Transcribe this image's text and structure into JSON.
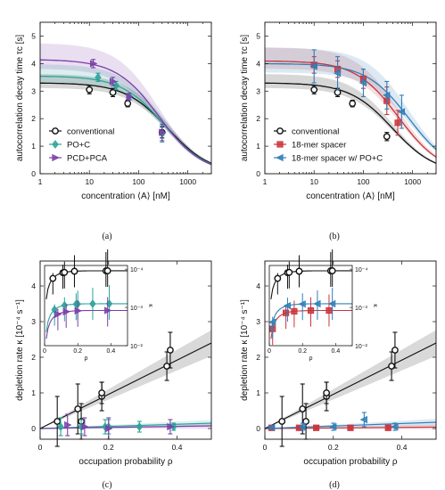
{
  "colors": {
    "conventional": "#111111",
    "poc": "#2ba39a",
    "pcd": "#7b3fa8",
    "spacer": "#c9343c",
    "spacer_poc": "#2f7fb8"
  },
  "chart_data": [
    {
      "panel": "a",
      "type": "scatter",
      "caption": "(a)",
      "xlabel": "concentration ⟨A⟩ [nM]",
      "ylabel": "autocorrelation decay time τc [s]",
      "xscale": "log",
      "xlim": [
        1,
        3000
      ],
      "ylim": [
        0,
        5.5
      ],
      "xticks": [
        "1",
        "10",
        "100",
        "1000"
      ],
      "yticks": [
        "0",
        "1",
        "2",
        "3",
        "4",
        "5"
      ],
      "legend_position": "bottom-left",
      "series": [
        {
          "name": "conventional",
          "color": "#111111",
          "marker": "circle",
          "x": [
            10,
            30,
            60,
            300
          ],
          "y": [
            3.05,
            2.95,
            2.55,
            1.5
          ],
          "err": [
            0.15,
            0.15,
            0.12,
            0.2
          ],
          "fit": {
            "y0": 3.3,
            "k": 390
          }
        },
        {
          "name": "PO+C",
          "color": "#2ba39a",
          "marker": "diamond",
          "x": [
            15,
            35,
            65,
            300
          ],
          "y": [
            3.5,
            3.2,
            2.8,
            1.45
          ],
          "err": [
            0.15,
            0.15,
            0.12,
            0.3
          ],
          "fit": {
            "y0": 3.55,
            "k": 330
          }
        },
        {
          "name": "PCD+PCA",
          "color": "#7b3fa8",
          "marker": "triangle-right",
          "x": [
            12,
            30,
            65,
            300
          ],
          "y": [
            4.0,
            3.35,
            2.8,
            1.5
          ],
          "err": [
            0.15,
            0.15,
            0.12,
            0.3
          ],
          "fit": {
            "y0": 4.15,
            "k": 260
          }
        }
      ]
    },
    {
      "panel": "b",
      "type": "scatter",
      "caption": "(b)",
      "xlabel": "concentration ⟨A⟩ [nM]",
      "ylabel": "autocorrelation decay time τc [s]",
      "xscale": "log",
      "xlim": [
        1,
        3000
      ],
      "ylim": [
        0,
        5.5
      ],
      "xticks": [
        "1",
        "10",
        "100",
        "1000"
      ],
      "yticks": [
        "0",
        "1",
        "2",
        "3",
        "4",
        "5"
      ],
      "legend_position": "bottom-left",
      "series": [
        {
          "name": "conventional",
          "color": "#111111",
          "marker": "circle",
          "x": [
            10,
            30,
            60,
            300
          ],
          "y": [
            3.05,
            2.95,
            2.55,
            1.35
          ],
          "err": [
            0.15,
            0.15,
            0.12,
            0.15
          ],
          "fit": {
            "y0": 3.3,
            "k": 390
          }
        },
        {
          "name": "18-mer spacer",
          "color": "#c9343c",
          "marker": "square",
          "x": [
            10,
            30,
            100,
            300,
            500
          ],
          "y": [
            3.95,
            3.8,
            3.45,
            2.65,
            1.85
          ],
          "err": [
            0.3,
            0.3,
            0.35,
            0.5,
            0.45
          ],
          "fit": {
            "y0": 4.1,
            "k": 520
          }
        },
        {
          "name": "18-mer spacer w/ PO+C",
          "color": "#2f7fb8",
          "marker": "triangle-left",
          "x": [
            10,
            30,
            100,
            300,
            600
          ],
          "y": [
            3.9,
            3.65,
            3.3,
            2.85,
            2.25
          ],
          "err": [
            0.6,
            0.6,
            0.5,
            0.5,
            0.6
          ],
          "fit": {
            "y0": 4.0,
            "k": 850
          }
        }
      ]
    },
    {
      "panel": "c",
      "type": "scatter",
      "caption": "(c)",
      "xlabel": "occupation probability ρ",
      "ylabel": "depletion rate κ [10⁻⁴ s⁻¹]",
      "xlim": [
        0,
        0.5
      ],
      "ylim": [
        -0.3,
        4.7
      ],
      "xticks": [
        "0",
        "0.2",
        "0.4"
      ],
      "yticks": [
        "0",
        "1",
        "2",
        "3",
        "4"
      ],
      "series": [
        {
          "name": "conventional",
          "color": "#111111",
          "marker": "circle",
          "x": [
            0.05,
            0.11,
            0.12,
            0.18,
            0.18,
            0.37,
            0.38
          ],
          "y": [
            0.2,
            0.55,
            0.2,
            0.9,
            1.0,
            1.75,
            2.2
          ],
          "err": [
            0.7,
            0.7,
            0.5,
            0.4,
            0.3,
            0.4,
            0.5
          ],
          "fit_slope": 4.8
        },
        {
          "name": "PO+C",
          "color": "#2ba39a",
          "marker": "diamond",
          "x": [
            0.06,
            0.12,
            0.19,
            0.2,
            0.29,
            0.39
          ],
          "y": [
            0.05,
            0.05,
            0.05,
            0.05,
            0.05,
            0.05
          ],
          "err": [
            0.25,
            0.2,
            0.2,
            0.2,
            0.15,
            0.1
          ],
          "fit_slope": 0.3
        },
        {
          "name": "PCD+PCA",
          "color": "#7b3fa8",
          "marker": "triangle-right",
          "x": [
            0.08,
            0.13,
            0.2,
            0.38
          ],
          "y": [
            0.1,
            0.05,
            0.0,
            0.05
          ],
          "err": [
            0.3,
            0.25,
            0.3,
            0.2
          ],
          "fit_slope": 0.15
        }
      ],
      "inset": {
        "xlim": [
          0,
          0.5
        ],
        "xticks": [
          "0",
          "0.2",
          "0.4"
        ],
        "xlabel": "ρ",
        "ylabel": "κ",
        "yscale": "log",
        "ylim": [
          0.01,
          8e-05
        ],
        "yticks": [
          "10⁻⁴",
          "10⁻³",
          "10⁻²"
        ]
      }
    },
    {
      "panel": "d",
      "type": "scatter",
      "caption": "(d)",
      "xlabel": "occupation probability ρ",
      "ylabel": "depletion rate κ [10⁻⁴ s⁻¹]",
      "xlim": [
        0,
        0.5
      ],
      "ylim": [
        -0.3,
        4.7
      ],
      "xticks": [
        "0",
        "0.2",
        "0.4"
      ],
      "yticks": [
        "0",
        "1",
        "2",
        "3",
        "4"
      ],
      "series": [
        {
          "name": "conventional",
          "color": "#111111",
          "marker": "circle",
          "x": [
            0.05,
            0.11,
            0.12,
            0.18,
            0.18,
            0.37,
            0.38
          ],
          "y": [
            0.2,
            0.55,
            0.2,
            0.9,
            1.0,
            1.75,
            2.2
          ],
          "err": [
            0.7,
            0.7,
            0.5,
            0.4,
            0.3,
            0.4,
            0.5
          ],
          "fit_slope": 4.8
        },
        {
          "name": "18-mer spacer",
          "color": "#c9343c",
          "marker": "square",
          "x": [
            0.02,
            0.1,
            0.15,
            0.25,
            0.36
          ],
          "y": [
            0.02,
            0.02,
            0.02,
            0.02,
            0.02
          ],
          "err": [
            0.05,
            0.05,
            0.05,
            0.05,
            0.05
          ],
          "fit_slope": 0.08
        },
        {
          "name": "18-mer spacer w/ PO+C",
          "color": "#2f7fb8",
          "marker": "triangle-left",
          "x": [
            0.02,
            0.11,
            0.2,
            0.29,
            0.38
          ],
          "y": [
            0.03,
            0.05,
            0.05,
            0.25,
            0.05
          ],
          "err": [
            0.05,
            0.1,
            0.1,
            0.2,
            0.1
          ],
          "fit_slope": 0.35
        }
      ],
      "inset": {
        "xlim": [
          0,
          0.5
        ],
        "xticks": [
          "0",
          "0.2",
          "0.4"
        ],
        "xlabel": "ρ",
        "ylabel": "κ",
        "yscale": "log",
        "ylim": [
          0.01,
          8e-05
        ],
        "yticks": [
          "10⁻⁴",
          "10⁻³",
          "10⁻²"
        ]
      }
    }
  ]
}
